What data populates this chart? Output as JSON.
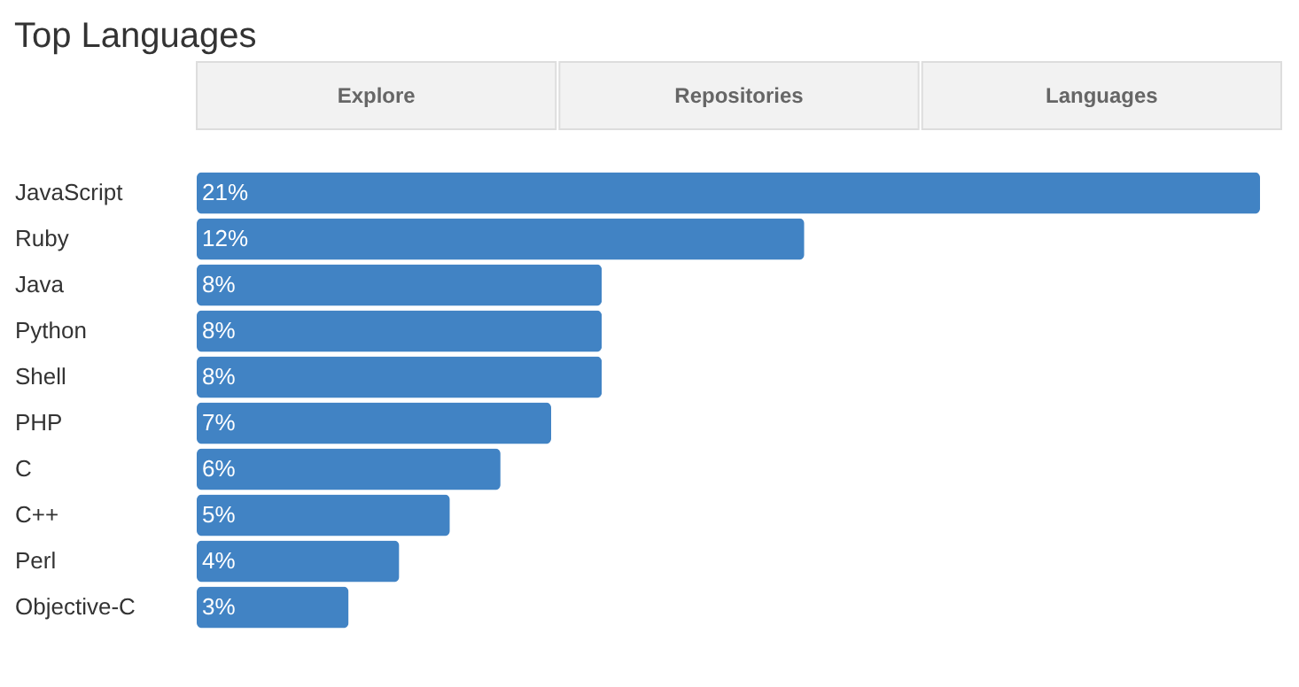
{
  "chart_data": {
    "type": "bar",
    "title": "Top Languages",
    "orientation": "horizontal",
    "annotations": [
      "Explore",
      "Repositories",
      "Languages"
    ],
    "categories": [
      "JavaScript",
      "Ruby",
      "Java",
      "Python",
      "Shell",
      "PHP",
      "C",
      "C++",
      "Perl",
      "Objective-C"
    ],
    "values": [
      21,
      12,
      8,
      8,
      8,
      7,
      6,
      5,
      4,
      3
    ],
    "value_labels": [
      "21%",
      "12%",
      "8%",
      "8%",
      "8%",
      "7%",
      "6%",
      "5%",
      "4%",
      "3%"
    ],
    "color": "#4183c4"
  }
}
